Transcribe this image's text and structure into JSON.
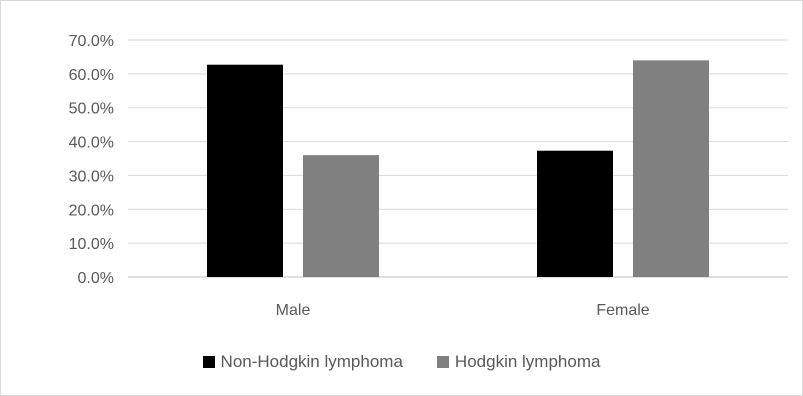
{
  "chart_data": {
    "type": "bar",
    "categories": [
      "Male",
      "Female"
    ],
    "series": [
      {
        "name": "Non-Hodgkin lymphoma",
        "values": [
          62.7,
          37.3
        ],
        "color": "#000000"
      },
      {
        "name": "Hodgkin lymphoma",
        "values": [
          36.0,
          64.0
        ],
        "color": "#808080"
      }
    ],
    "ylim": [
      0,
      70
    ],
    "yticks": [
      "0.0%",
      "10.0%",
      "20.0%",
      "30.0%",
      "40.0%",
      "50.0%",
      "60.0%",
      "70.0%"
    ],
    "grid": true,
    "legend_position": "bottom",
    "title": "",
    "xlabel": "",
    "ylabel": ""
  }
}
